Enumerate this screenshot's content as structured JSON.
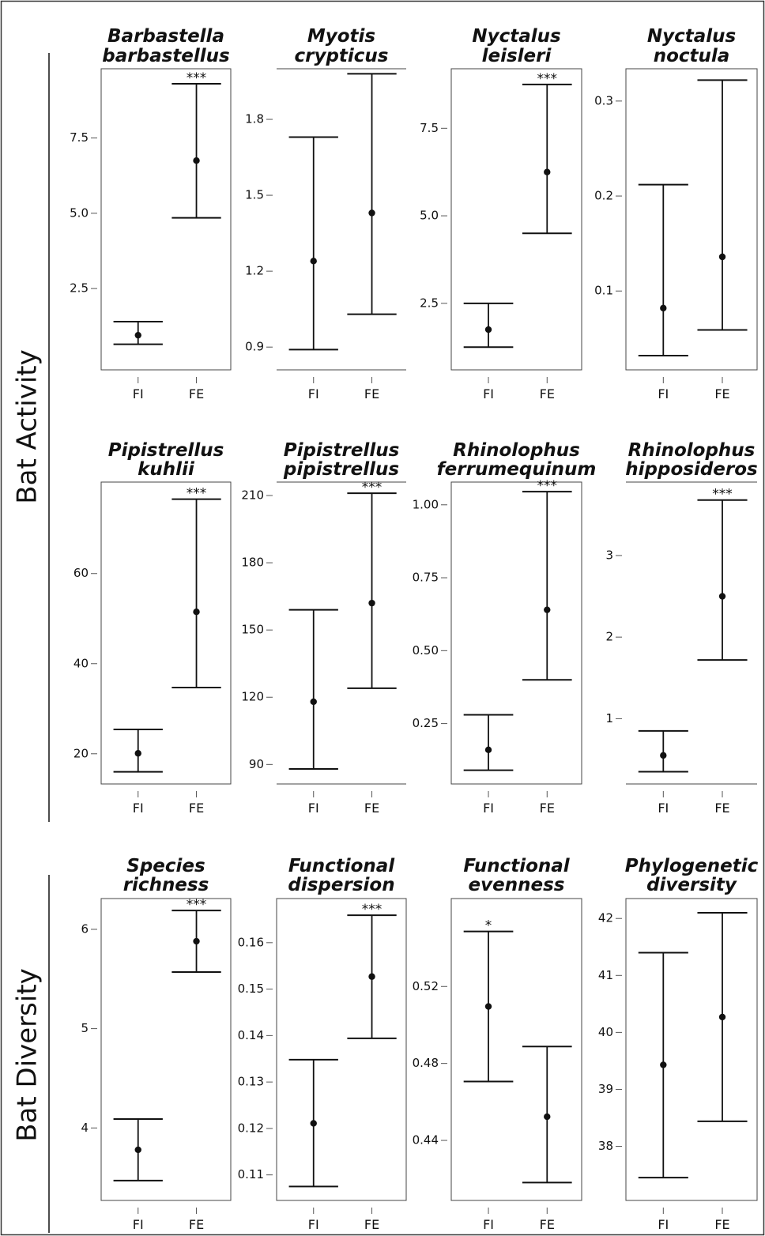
{
  "row_labels": [
    {
      "label": "Bat Activity"
    },
    {
      "label": "Bat Diversity"
    }
  ],
  "chart_data": [
    {
      "type": "errorbar",
      "title": [
        "Barbastella",
        "barbastellus"
      ],
      "categories": [
        "FI",
        "FE"
      ],
      "yticks": [
        2.5,
        5.0,
        7.5
      ],
      "yticklabels": [
        "2.5",
        "5.0",
        "7.5"
      ],
      "ylim": [
        -0.2,
        9.8
      ],
      "points": [
        {
          "x": "FI",
          "mean": 0.95,
          "lower": 0.65,
          "upper": 1.4
        },
        {
          "x": "FE",
          "mean": 6.75,
          "lower": 4.85,
          "upper": 9.3
        }
      ],
      "significance": {
        "FI": "",
        "FE": "***"
      },
      "frame": "box"
    },
    {
      "type": "errorbar",
      "title": [
        "Myotis",
        "crypticus"
      ],
      "categories": [
        "FI",
        "FE"
      ],
      "yticks": [
        0.9,
        1.2,
        1.5,
        1.8
      ],
      "yticklabels": [
        "0.9",
        "1.2",
        "1.5",
        "1.8"
      ],
      "ylim": [
        0.81,
        2.0
      ],
      "points": [
        {
          "x": "FI",
          "mean": 1.24,
          "lower": 0.89,
          "upper": 1.73
        },
        {
          "x": "FE",
          "mean": 1.43,
          "lower": 1.03,
          "upper": 1.98
        }
      ],
      "significance": {
        "FI": "",
        "FE": ""
      },
      "frame": "open"
    },
    {
      "type": "errorbar",
      "title": [
        "Nyctalus",
        "leisleri"
      ],
      "categories": [
        "FI",
        "FE"
      ],
      "yticks": [
        2.5,
        5.0,
        7.5
      ],
      "yticklabels": [
        "2.5",
        "5.0",
        "7.5"
      ],
      "ylim": [
        0.6,
        9.2
      ],
      "points": [
        {
          "x": "FI",
          "mean": 1.75,
          "lower": 1.25,
          "upper": 2.5
        },
        {
          "x": "FE",
          "mean": 6.25,
          "lower": 4.5,
          "upper": 8.75
        }
      ],
      "significance": {
        "FI": "",
        "FE": "***"
      },
      "frame": "box"
    },
    {
      "type": "errorbar",
      "title": [
        "Nyctalus",
        "noctula"
      ],
      "categories": [
        "FI",
        "FE"
      ],
      "yticks": [
        0.1,
        0.2,
        0.3
      ],
      "yticklabels": [
        "0.1",
        "0.2",
        "0.3"
      ],
      "ylim": [
        0.017,
        0.334
      ],
      "points": [
        {
          "x": "FI",
          "mean": 0.082,
          "lower": 0.032,
          "upper": 0.212
        },
        {
          "x": "FE",
          "mean": 0.136,
          "lower": 0.059,
          "upper": 0.322
        }
      ],
      "significance": {
        "FI": "",
        "FE": ""
      },
      "frame": "box"
    },
    {
      "type": "errorbar",
      "title": [
        "Pipistrellus",
        "kuhlii"
      ],
      "categories": [
        "FI",
        "FE"
      ],
      "yticks": [
        20,
        40,
        60
      ],
      "yticklabels": [
        "20",
        "40",
        "60"
      ],
      "ylim": [
        13.3,
        80.3
      ],
      "points": [
        {
          "x": "FI",
          "mean": 20.1,
          "lower": 16.0,
          "upper": 25.4
        },
        {
          "x": "FE",
          "mean": 51.5,
          "lower": 34.7,
          "upper": 76.5
        }
      ],
      "significance": {
        "FI": "",
        "FE": "***"
      },
      "frame": "box"
    },
    {
      "type": "errorbar",
      "title": [
        "Pipistrellus",
        "pipistrellus"
      ],
      "categories": [
        "FI",
        "FE"
      ],
      "yticks": [
        90,
        120,
        150,
        180,
        210
      ],
      "yticklabels": [
        "90",
        "120",
        "150",
        "180",
        "210"
      ],
      "ylim": [
        81.3,
        216
      ],
      "points": [
        {
          "x": "FI",
          "mean": 118,
          "lower": 88,
          "upper": 159
        },
        {
          "x": "FE",
          "mean": 162,
          "lower": 124,
          "upper": 211
        }
      ],
      "significance": {
        "FI": "",
        "FE": "***"
      },
      "frame": "open"
    },
    {
      "type": "errorbar",
      "title": [
        "Rhinolophus",
        "ferrumequinum"
      ],
      "categories": [
        "FI",
        "FE"
      ],
      "yticks": [
        0.25,
        0.5,
        0.75,
        1.0
      ],
      "yticklabels": [
        "0.25",
        "0.50",
        "0.75",
        "1.00"
      ],
      "ylim": [
        0.043,
        1.078
      ],
      "points": [
        {
          "x": "FI",
          "mean": 0.16,
          "lower": 0.09,
          "upper": 0.28
        },
        {
          "x": "FE",
          "mean": 0.64,
          "lower": 0.4,
          "upper": 1.045
        }
      ],
      "significance": {
        "FI": "",
        "FE": "***"
      },
      "frame": "box"
    },
    {
      "type": "errorbar",
      "title": [
        "Rhinolophus",
        "hipposideros"
      ],
      "categories": [
        "FI",
        "FE"
      ],
      "yticks": [
        1,
        2,
        3
      ],
      "yticklabels": [
        "1",
        "2",
        "3"
      ],
      "ylim": [
        0.2,
        3.9
      ],
      "points": [
        {
          "x": "FI",
          "mean": 0.55,
          "lower": 0.35,
          "upper": 0.85
        },
        {
          "x": "FE",
          "mean": 2.5,
          "lower": 1.72,
          "upper": 3.68
        }
      ],
      "significance": {
        "FI": "",
        "FE": "***"
      },
      "frame": "open"
    },
    {
      "type": "errorbar",
      "title": [
        "Species",
        "richness"
      ],
      "categories": [
        "FI",
        "FE"
      ],
      "yticks": [
        4,
        5,
        6
      ],
      "yticklabels": [
        "4",
        "5",
        "6"
      ],
      "ylim": [
        3.27,
        6.31
      ],
      "points": [
        {
          "x": "FI",
          "mean": 3.78,
          "lower": 3.47,
          "upper": 4.09
        },
        {
          "x": "FE",
          "mean": 5.88,
          "lower": 5.57,
          "upper": 6.19
        }
      ],
      "significance": {
        "FI": "",
        "FE": "***"
      },
      "frame": "box"
    },
    {
      "type": "errorbar",
      "title": [
        "Functional",
        "dispersion"
      ],
      "categories": [
        "FI",
        "FE"
      ],
      "yticks": [
        0.11,
        0.12,
        0.13,
        0.14,
        0.15,
        0.16
      ],
      "yticklabels": [
        "0.11",
        "0.12",
        "0.13",
        "0.14",
        "0.15",
        "0.16"
      ],
      "ylim": [
        0.1045,
        0.1695
      ],
      "points": [
        {
          "x": "FI",
          "mean": 0.1211,
          "lower": 0.1075,
          "upper": 0.1348
        },
        {
          "x": "FE",
          "mean": 0.1527,
          "lower": 0.1394,
          "upper": 0.1659
        }
      ],
      "significance": {
        "FI": "",
        "FE": "***"
      },
      "frame": "box"
    },
    {
      "type": "errorbar",
      "title": [
        "Functional",
        "evenness"
      ],
      "categories": [
        "FI",
        "FE"
      ],
      "yticks": [
        0.44,
        0.48,
        0.52
      ],
      "yticklabels": [
        "0.44",
        "0.48",
        "0.52"
      ],
      "ylim": [
        0.4088,
        0.5657
      ],
      "points": [
        {
          "x": "FI",
          "mean": 0.5096,
          "lower": 0.4706,
          "upper": 0.5486
        },
        {
          "x": "FE",
          "mean": 0.4523,
          "lower": 0.4181,
          "upper": 0.4888
        }
      ],
      "significance": {
        "FI": "*",
        "FE": ""
      },
      "frame": "box"
    },
    {
      "type": "errorbar",
      "title": [
        "Phylogenetic",
        "diversity"
      ],
      "categories": [
        "FI",
        "FE"
      ],
      "yticks": [
        38,
        39,
        40,
        41,
        42
      ],
      "yticklabels": [
        "38",
        "39",
        "40",
        "41",
        "42"
      ],
      "ylim": [
        37.05,
        42.35
      ],
      "points": [
        {
          "x": "FI",
          "mean": 39.43,
          "lower": 37.45,
          "upper": 41.4
        },
        {
          "x": "FE",
          "mean": 40.27,
          "lower": 38.44,
          "upper": 42.1
        }
      ],
      "significance": {
        "FI": "",
        "FE": ""
      },
      "frame": "box"
    }
  ]
}
